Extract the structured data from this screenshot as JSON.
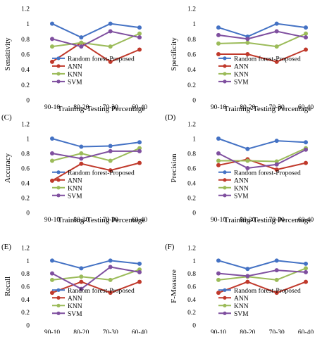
{
  "series_names": [
    "Random forest-Proposed",
    "ANN",
    "KNN",
    "SVM"
  ],
  "colors": {
    "Random forest-Proposed": "#4472c4",
    "ANN": "#c0392b",
    "KNN": "#9bbb59",
    "SVM": "#7f4f9f"
  },
  "chart_data": [
    {
      "type": "line",
      "panel_label": "",
      "ylabel": "Sensitivity",
      "xlabel": "Training-Testing Percentage",
      "categories": [
        "90-10",
        "80-20",
        "70-30",
        "60-40"
      ],
      "yticks": [
        "0",
        "0.2",
        "0.4",
        "0.6",
        "0.8",
        "1",
        "1.2"
      ],
      "ylim": [
        0,
        1.2
      ],
      "legend": "inside-lower",
      "series": [
        {
          "name": "Random forest-Proposed",
          "values": [
            1.0,
            0.82,
            1.0,
            0.95
          ]
        },
        {
          "name": "ANN",
          "values": [
            0.5,
            0.75,
            0.5,
            0.66
          ]
        },
        {
          "name": "KNN",
          "values": [
            0.7,
            0.75,
            0.7,
            0.87
          ]
        },
        {
          "name": "SVM",
          "values": [
            0.8,
            0.7,
            0.9,
            0.82
          ]
        }
      ]
    },
    {
      "type": "line",
      "panel_label": "",
      "ylabel": "Specificity",
      "xlabel": "Training-Testing Percentage",
      "categories": [
        "90-10",
        "80-20",
        "70-30",
        "60-40"
      ],
      "yticks": [
        "0",
        "0.2",
        "0.4",
        "0.6",
        "0.8",
        "1",
        "1.2"
      ],
      "ylim": [
        0,
        1.2
      ],
      "legend": "inside-lower",
      "series": [
        {
          "name": "Random forest-Proposed",
          "values": [
            0.95,
            0.83,
            1.0,
            0.95
          ]
        },
        {
          "name": "ANN",
          "values": [
            0.6,
            0.6,
            0.5,
            0.66
          ]
        },
        {
          "name": "KNN",
          "values": [
            0.74,
            0.75,
            0.7,
            0.87
          ]
        },
        {
          "name": "SVM",
          "values": [
            0.85,
            0.8,
            0.9,
            0.82
          ]
        }
      ]
    },
    {
      "type": "line",
      "panel_label": "(C)",
      "ylabel": "Accuracy",
      "xlabel": "Training-Testing Percentage",
      "categories": [
        "90-10",
        "80-20",
        "70-30",
        "60-40"
      ],
      "yticks": [
        "0",
        "0.2",
        "0.4",
        "0.6",
        "0.8",
        "1",
        "1.2"
      ],
      "ylim": [
        0,
        1.2
      ],
      "legend": "inside-lower",
      "series": [
        {
          "name": "Random forest-Proposed",
          "values": [
            1.0,
            0.89,
            0.9,
            0.95
          ]
        },
        {
          "name": "ANN",
          "values": [
            0.43,
            0.66,
            0.57,
            0.67
          ]
        },
        {
          "name": "KNN",
          "values": [
            0.7,
            0.8,
            0.7,
            0.87
          ]
        },
        {
          "name": "SVM",
          "values": [
            0.8,
            0.73,
            0.83,
            0.83
          ]
        }
      ]
    },
    {
      "type": "line",
      "panel_label": "(D)",
      "ylabel": "Precision",
      "xlabel": "Training-Testing Percentage",
      "categories": [
        "90-10",
        "80-20",
        "70-30",
        "60-40"
      ],
      "yticks": [
        "0",
        "0.2",
        "0.4",
        "0.6",
        "0.8",
        "1",
        "1.2"
      ],
      "ylim": [
        0,
        1.2
      ],
      "legend": "inside-lower",
      "series": [
        {
          "name": "Random forest-Proposed",
          "values": [
            1.0,
            0.86,
            0.97,
            0.95
          ]
        },
        {
          "name": "ANN",
          "values": [
            0.64,
            0.72,
            0.58,
            0.67
          ]
        },
        {
          "name": "KNN",
          "values": [
            0.7,
            0.7,
            0.69,
            0.87
          ]
        },
        {
          "name": "SVM",
          "values": [
            0.8,
            0.6,
            0.65,
            0.85
          ]
        }
      ]
    },
    {
      "type": "line",
      "panel_label": "(E)",
      "ylabel": "Recall",
      "xlabel": "",
      "categories": [
        "90-10",
        "80-20",
        "70-30",
        "60-40"
      ],
      "yticks": [
        "0",
        "0.2",
        "0.4",
        "0.6",
        "0.8",
        "1",
        "1.2"
      ],
      "ylim": [
        0,
        1.2
      ],
      "legend": "inside-lower",
      "series": [
        {
          "name": "Random forest-Proposed",
          "values": [
            1.0,
            0.88,
            1.0,
            0.95
          ]
        },
        {
          "name": "ANN",
          "values": [
            0.5,
            0.67,
            0.5,
            0.67
          ]
        },
        {
          "name": "KNN",
          "values": [
            0.7,
            0.75,
            0.7,
            0.86
          ]
        },
        {
          "name": "SVM",
          "values": [
            0.8,
            0.56,
            0.9,
            0.82
          ]
        }
      ]
    },
    {
      "type": "line",
      "panel_label": "(F)",
      "ylabel": "F-Measure",
      "xlabel": "",
      "categories": [
        "90-10",
        "80-20",
        "70-30",
        "60-40"
      ],
      "yticks": [
        "0",
        "0.2",
        "0.4",
        "0.6",
        "0.8",
        "1",
        "1.2"
      ],
      "ylim": [
        0,
        1.2
      ],
      "legend": "inside-lower",
      "series": [
        {
          "name": "Random forest-Proposed",
          "values": [
            1.0,
            0.87,
            1.0,
            0.95
          ]
        },
        {
          "name": "ANN",
          "values": [
            0.5,
            0.67,
            0.5,
            0.67
          ]
        },
        {
          "name": "KNN",
          "values": [
            0.7,
            0.75,
            0.7,
            0.88
          ]
        },
        {
          "name": "SVM",
          "values": [
            0.8,
            0.76,
            0.85,
            0.82
          ]
        }
      ]
    }
  ]
}
